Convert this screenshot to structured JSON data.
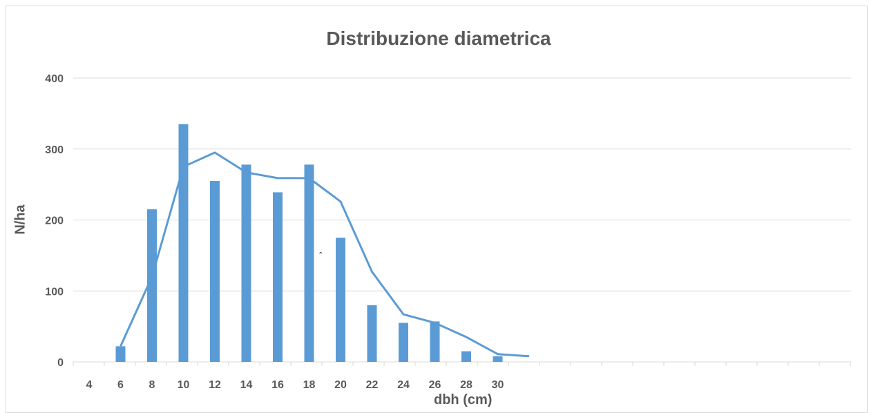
{
  "chart_data": {
    "type": "bar",
    "title": "Distribuzione diametrica",
    "xlabel": "dbh (cm)",
    "ylabel": "N/ha",
    "ylim": [
      0,
      400
    ],
    "yticks": [
      0,
      100,
      200,
      300,
      400
    ],
    "grid": true,
    "legend": "none",
    "x_tick_labels": [
      "4",
      "6",
      "8",
      "10",
      "12",
      "14",
      "16",
      "18",
      "20",
      "22",
      "24",
      "26",
      "28",
      "30"
    ],
    "bars": {
      "x": [
        6,
        8,
        10,
        12,
        14,
        16,
        18,
        20,
        22,
        24,
        26,
        28,
        30
      ],
      "values": [
        22,
        215,
        335,
        255,
        278,
        239,
        278,
        175,
        80,
        55,
        57,
        15,
        8
      ],
      "color": "#5b9bd5"
    },
    "line": {
      "x": [
        6,
        8,
        10,
        12,
        14,
        16,
        18,
        20,
        22,
        24,
        26,
        28,
        30,
        32
      ],
      "values": [
        22,
        120,
        275,
        295,
        267,
        259,
        259,
        226,
        127,
        67,
        55,
        35,
        11,
        8
      ],
      "color": "#5b9bd5"
    },
    "annotation": "ˆ"
  }
}
